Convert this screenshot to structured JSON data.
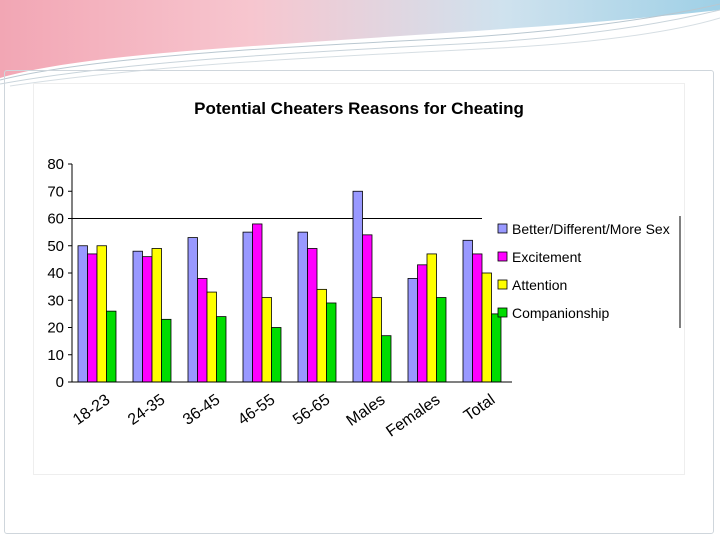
{
  "chart_data": {
    "type": "bar",
    "title": "Potential Cheaters Reasons for Cheating",
    "xlabel": "",
    "ylabel": "",
    "ylim": [
      0,
      80
    ],
    "yticks": [
      0,
      10,
      20,
      30,
      40,
      50,
      60,
      70,
      80
    ],
    "grid": true,
    "legend_position": "right",
    "categories": [
      "18-23",
      "24-35",
      "36-45",
      "46-55",
      "56-65",
      "Males",
      "Females",
      "Total"
    ],
    "series": [
      {
        "name": "Better/Different/More Sex",
        "color": "#9999ff",
        "values": [
          50,
          48,
          53,
          55,
          55,
          70,
          38,
          52
        ]
      },
      {
        "name": "Excitement",
        "color": "#ff00ff",
        "values": [
          47,
          46,
          38,
          58,
          49,
          54,
          43,
          47
        ]
      },
      {
        "name": "Attention",
        "color": "#ffff00",
        "values": [
          50,
          49,
          33,
          31,
          34,
          31,
          47,
          40
        ]
      },
      {
        "name": "Companionship",
        "color": "#00dd00",
        "values": [
          26,
          23,
          24,
          20,
          29,
          17,
          31,
          25
        ]
      }
    ]
  }
}
